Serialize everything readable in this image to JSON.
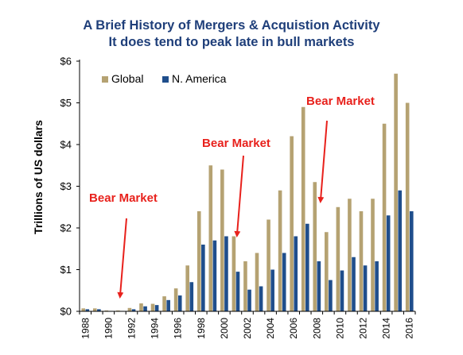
{
  "chart_data": {
    "type": "bar",
    "title": "A Brief History of Mergers & Acquistion Activity",
    "subtitle": "It does tend to peak late in bull markets",
    "ylabel": "Trillions of US dollars",
    "xlabel": "",
    "ylim": [
      0,
      6
    ],
    "yticks": [
      "$0",
      "$1",
      "$2",
      "$3",
      "$4",
      "$5",
      "$6"
    ],
    "categories": [
      "1988",
      "1989",
      "1990",
      "1991",
      "1992",
      "1993",
      "1994",
      "1995",
      "1996",
      "1997",
      "1998",
      "1999",
      "2000",
      "2001",
      "2002",
      "2003",
      "2004",
      "2005",
      "2006",
      "2007",
      "2008",
      "2009",
      "2010",
      "2011",
      "2012",
      "2013",
      "2014",
      "2015",
      "2016"
    ],
    "xtick_labels": [
      "1988",
      "1990",
      "1992",
      "1994",
      "1996",
      "1998",
      "2000",
      "2002",
      "2004",
      "2006",
      "2008",
      "2010",
      "2012",
      "2014",
      "2016"
    ],
    "series": [
      {
        "name": "Global",
        "color": "#b5a272",
        "values": [
          0.07,
          0.07,
          0.02,
          0.02,
          0.08,
          0.19,
          0.18,
          0.36,
          0.55,
          1.1,
          2.4,
          3.5,
          3.4,
          1.8,
          1.2,
          1.4,
          2.2,
          2.9,
          4.2,
          4.9,
          3.1,
          1.9,
          2.5,
          2.7,
          2.4,
          2.7,
          4.5,
          5.7,
          5.0
        ]
      },
      {
        "name": "N. America",
        "color": "#1f4e8c",
        "values": [
          0.05,
          0.05,
          0.01,
          0.01,
          0.05,
          0.12,
          0.15,
          0.27,
          0.38,
          0.7,
          1.6,
          1.7,
          1.8,
          0.95,
          0.52,
          0.6,
          1.0,
          1.4,
          1.8,
          2.1,
          1.2,
          0.75,
          0.98,
          1.3,
          1.1,
          1.2,
          2.3,
          2.9,
          2.4
        ]
      }
    ],
    "legend_position": "top-left",
    "annotations": [
      {
        "text": "Bear Market",
        "year": "1991",
        "color": "#e8211c"
      },
      {
        "text": "Bear Market",
        "year": "2001",
        "color": "#e8211c"
      },
      {
        "text": "Bear Market",
        "year": "2008",
        "color": "#e8211c"
      }
    ],
    "grid": false
  }
}
